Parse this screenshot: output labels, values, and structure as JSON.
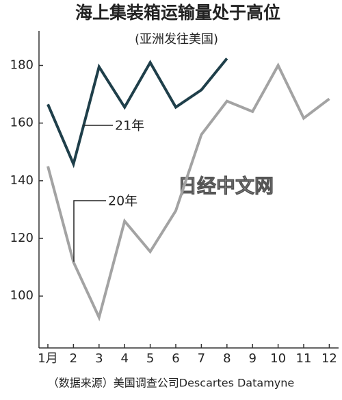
{
  "chart_data": {
    "type": "line",
    "title": "海上集装箱运输量处于高位",
    "subtitle": "(亚洲发往美国)",
    "categories": [
      "1月",
      "2",
      "3",
      "4",
      "5",
      "6",
      "7",
      "8",
      "9",
      "10",
      "11",
      "12"
    ],
    "series": [
      {
        "name": "21年",
        "color": "#1f3f4a",
        "values": [
          166.5,
          145.8,
          179.5,
          165.5,
          181,
          165.5,
          171.5,
          182.4,
          null,
          null,
          null,
          null
        ]
      },
      {
        "name": "20年",
        "color": "#a3a3a3",
        "values": [
          145,
          111.8,
          92.6,
          126,
          115.4,
          129.6,
          156,
          167.6,
          164,
          180,
          161.7,
          168.4
        ]
      }
    ],
    "ylim": [
      82,
      192
    ],
    "yticks": [
      100,
      120,
      140,
      160,
      180
    ],
    "grid": false,
    "watermark": "日经中文网",
    "source": "（数据来源）美国调查公司Descartes Datamyne"
  }
}
